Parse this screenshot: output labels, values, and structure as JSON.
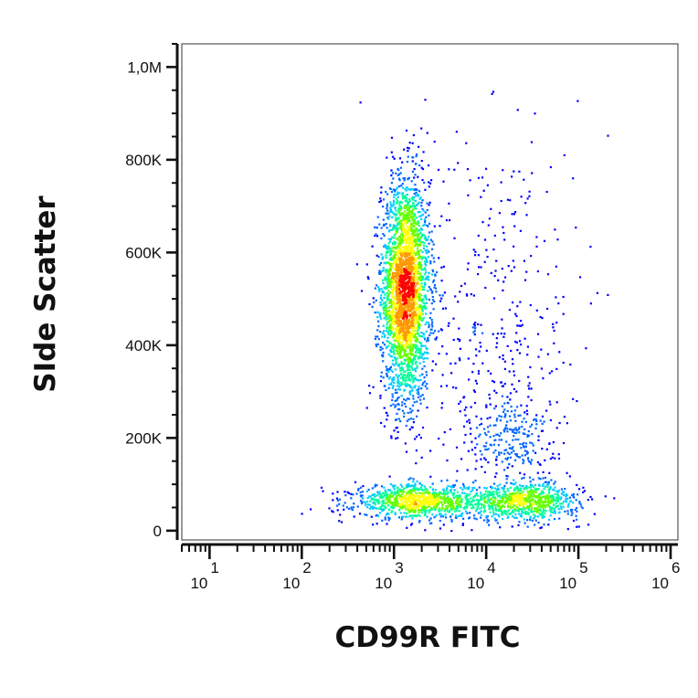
{
  "chart_data": {
    "type": "scatter",
    "style": "flow cytometry density dot plot (blue-to-red density colouring)",
    "xlabel": "CD99R FITC",
    "ylabel": "SIde Scatter",
    "x_scale": "log",
    "xlim": [
      5,
      1200000
    ],
    "ylim": [
      -20000,
      1050000
    ],
    "x_ticks": [
      {
        "value": 10,
        "base": "10",
        "exp": "1"
      },
      {
        "value": 100,
        "base": "10",
        "exp": "2"
      },
      {
        "value": 1000,
        "base": "10",
        "exp": "3"
      },
      {
        "value": 10000,
        "base": "10",
        "exp": "4"
      },
      {
        "value": 100000,
        "base": "10",
        "exp": "5"
      },
      {
        "value": 1000000,
        "base": "10",
        "exp": "6"
      }
    ],
    "y_ticks": [
      {
        "value": 0,
        "label": "0"
      },
      {
        "value": 200000,
        "label": "200K"
      },
      {
        "value": 400000,
        "label": "400K"
      },
      {
        "value": 600000,
        "label": "600K"
      },
      {
        "value": 800000,
        "label": "800K"
      },
      {
        "value": 1000000,
        "label": "1,0M"
      }
    ],
    "populations": [
      {
        "x_center": 1300,
        "y_center": 520000,
        "x_spread_log10": 0.13,
        "y_spread": 120000,
        "relative_size": 0.55
      },
      {
        "x_center": 1800,
        "y_center": 65000,
        "x_spread_log10": 0.35,
        "y_spread": 18000,
        "relative_size": 0.18
      },
      {
        "x_center": 25000,
        "y_center": 65000,
        "x_spread_log10": 0.3,
        "y_spread": 20000,
        "relative_size": 0.15
      },
      {
        "x_center": 18000,
        "y_center": 200000,
        "x_spread_log10": 0.25,
        "y_spread": 55000,
        "relative_size": 0.05
      },
      {
        "x_center": 12000,
        "y_center": 450000,
        "x_spread_log10": 0.45,
        "y_spread": 220000,
        "relative_size": 0.07
      }
    ],
    "density_colors": [
      "#0000ff",
      "#0066ff",
      "#00ccff",
      "#00ff99",
      "#66ff00",
      "#ffff00",
      "#ff9900",
      "#ff0000"
    ],
    "grid": false,
    "legend": "none"
  }
}
